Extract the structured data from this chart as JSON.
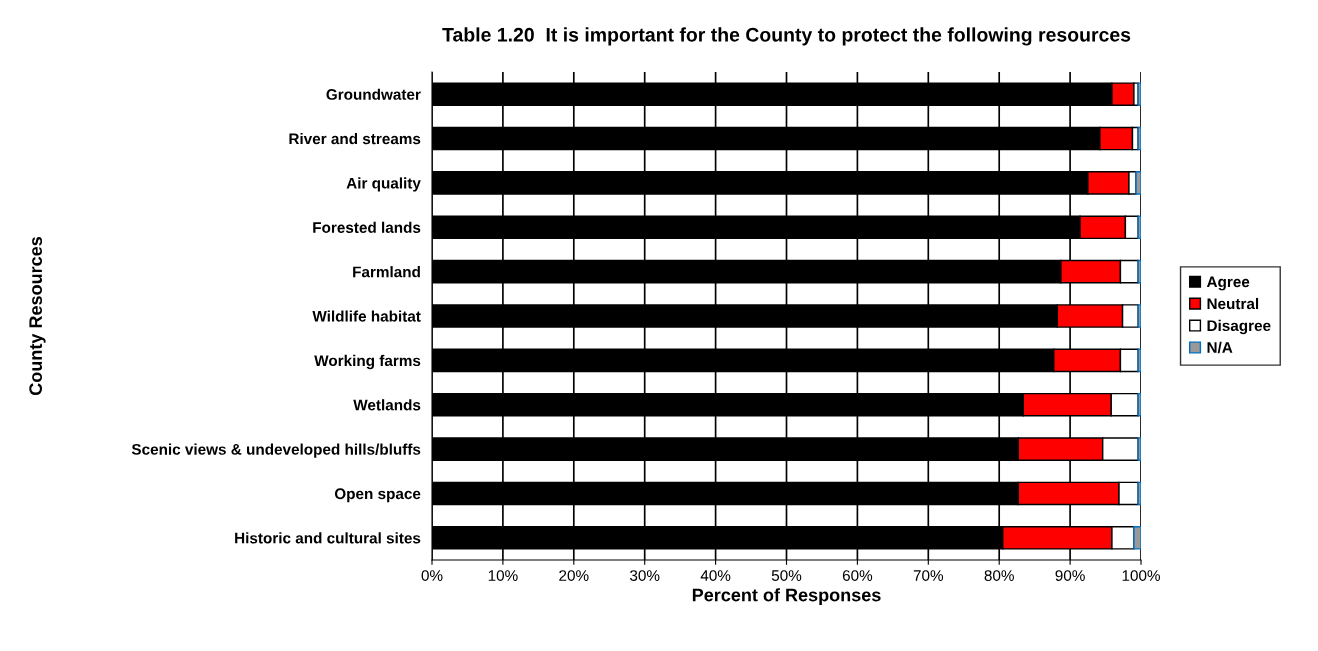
{
  "chart_data": {
    "type": "bar",
    "orientation": "horizontal",
    "stacked": true,
    "title": "Table 1.20  It is important for the County to protect the following resources",
    "xlabel": "Percent of Responses",
    "ylabel": "County Resources",
    "categories": [
      "Groundwater",
      "River and streams",
      "Air quality",
      "Forested lands",
      "Farmland",
      "Wildlife habitat",
      "Working farms",
      "Wetlands",
      "Scenic views & undeveloped hills/bluffs",
      "Open space",
      "Historic and cultural sites"
    ],
    "series": [
      {
        "name": "Agree",
        "color": "#000000",
        "values": [
          95.9,
          94.2,
          92.5,
          91.4,
          88.7,
          88.2,
          87.7,
          83.4,
          82.7,
          82.7,
          80.5
        ]
      },
      {
        "name": "Neutral",
        "color": "#ff0000",
        "values": [
          3.1,
          4.6,
          5.8,
          6.4,
          8.4,
          9.2,
          9.4,
          12.4,
          11.9,
          14.2,
          15.4
        ]
      },
      {
        "name": "Disagree",
        "color": "#ffffff",
        "values": [
          0.6,
          0.8,
          1.0,
          1.8,
          2.5,
          2.2,
          2.5,
          3.8,
          5.0,
          2.7,
          3.1
        ]
      },
      {
        "name": "N/A",
        "color": "#999999",
        "values": [
          0.4,
          0.4,
          0.7,
          0.4,
          0.4,
          0.4,
          0.4,
          0.4,
          0.4,
          0.4,
          1.0
        ]
      }
    ],
    "xlim": [
      0,
      100
    ],
    "xticks": [
      {
        "value": 0,
        "label": "0%"
      },
      {
        "value": 10,
        "label": "10%"
      },
      {
        "value": 20,
        "label": "20%"
      },
      {
        "value": 30,
        "label": "30%"
      },
      {
        "value": 40,
        "label": "40%"
      },
      {
        "value": 50,
        "label": "50%"
      },
      {
        "value": 60,
        "label": "60%"
      },
      {
        "value": 70,
        "label": "70%"
      },
      {
        "value": 80,
        "label": "80%"
      },
      {
        "value": 90,
        "label": "90%"
      },
      {
        "value": 100,
        "label": "100%"
      }
    ],
    "grid": "x",
    "legend": "right"
  }
}
